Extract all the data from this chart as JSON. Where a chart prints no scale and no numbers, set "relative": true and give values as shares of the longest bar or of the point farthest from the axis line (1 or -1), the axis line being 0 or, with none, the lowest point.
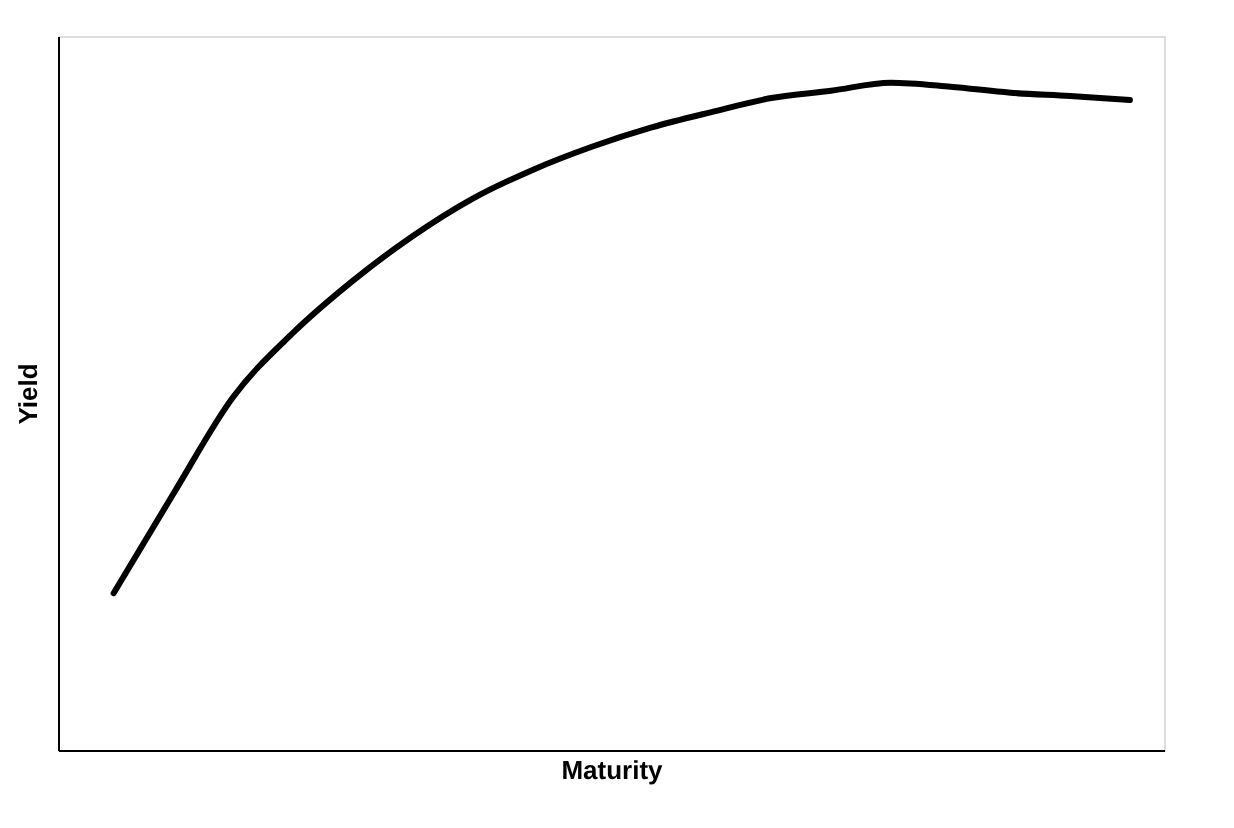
{
  "chart_data": {
    "type": "line",
    "xlabel": "Maturity",
    "ylabel": "Yield",
    "relative": true,
    "marker": "none",
    "line_style": "solid",
    "categories": [
      null,
      null,
      null,
      null,
      null,
      null,
      null,
      null,
      null,
      null,
      null,
      null,
      null,
      null,
      null,
      null,
      null,
      null
    ],
    "series": [
      {
        "color": "#000000",
        "values": [
          0.235,
          0.384,
          0.529,
          0.625,
          0.703,
          0.77,
          0.826,
          0.869,
          0.904,
          0.933,
          0.956,
          0.977,
          0.988,
          1.0,
          0.994,
          0.985,
          0.98,
          0.974
        ]
      }
    ]
  }
}
